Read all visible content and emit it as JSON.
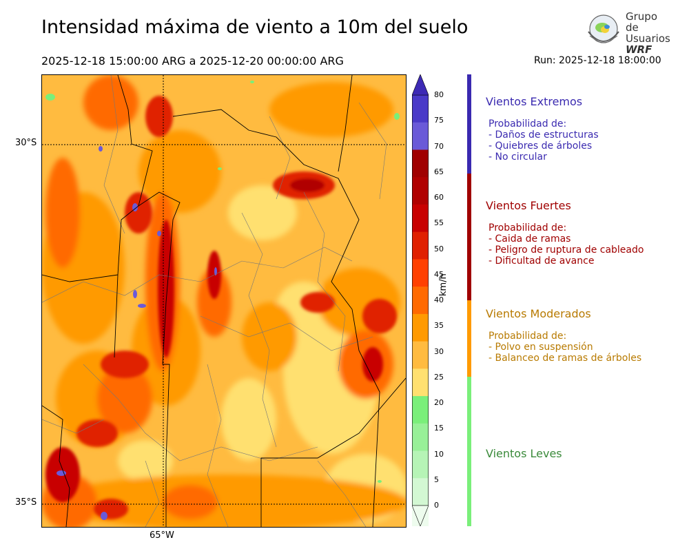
{
  "header": {
    "title": "Intensidad máxima de viento a 10m del suelo",
    "period": "2025-12-18 15:00:00 ARG  a  2025-12-20 00:00:00 ARG",
    "run": "Run: 2025-12-18 18:00:00"
  },
  "logo": {
    "line1": "Grupo de",
    "line2": "Usuarios",
    "line3": "WRF"
  },
  "map": {
    "lat_labels": [
      "30°S",
      "35°S"
    ],
    "lon_labels": [
      "65°W"
    ]
  },
  "colorbar": {
    "units": "km/h",
    "ticks": [
      "80",
      "75",
      "70",
      "65",
      "60",
      "55",
      "50",
      "45",
      "40",
      "35",
      "30",
      "25",
      "20",
      "15",
      "10",
      "5",
      "0"
    ],
    "colors": [
      "#3d2ab5",
      "#4a3ac8",
      "#6a5ad8",
      "#a00000",
      "#b00000",
      "#c80000",
      "#e02000",
      "#ff4000",
      "#ff6a00",
      "#ff9a00",
      "#ffbb40",
      "#ffe070",
      "#7aef7a",
      "#98f098",
      "#b6f4b6",
      "#d3f8d3",
      "#eefcee"
    ]
  },
  "categories": [
    {
      "title": "Vientos Extremos",
      "color": "#3a2ab0",
      "intro": "Probabilidad de:",
      "items": [
        "- Daños de estructuras",
        "- Quiebres de árboles",
        "- No circular"
      ]
    },
    {
      "title": "Vientos Fuertes",
      "color": "#a00000",
      "intro": "Probabilidad de:",
      "items": [
        "- Caida de ramas",
        "- Peligro de ruptura de cableado",
        "- Dificultad de avance"
      ]
    },
    {
      "title": "Vientos Moderados",
      "color": "#b87a00",
      "intro": "Probabilidad de:",
      "items": [
        "- Polvo en suspensión",
        "- Balanceo de ramas de árboles"
      ]
    },
    {
      "title": "Vientos Leves",
      "color": "#3a8a3a",
      "intro": "",
      "items": []
    }
  ],
  "category_bar_colors": [
    "#3a2ab0",
    "#a00000",
    "#ff9a00",
    "#7aef7a"
  ]
}
